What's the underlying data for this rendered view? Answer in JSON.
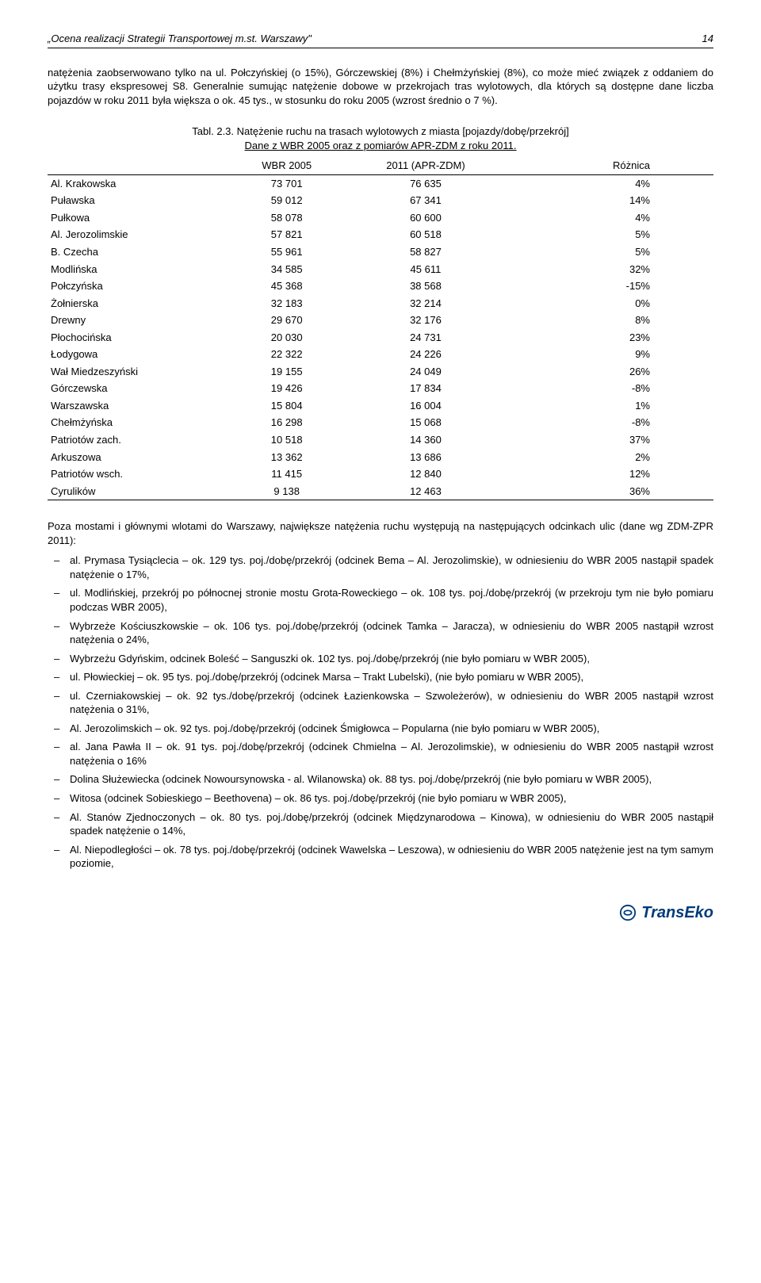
{
  "header": {
    "title": "„Ocena realizacji Strategii Transportowej m.st. Warszawy\"",
    "page_number": "14"
  },
  "intro_paragraph": "natężenia zaobserwowano tylko na ul. Połczyńskiej (o 15%), Górczewskiej (8%) i Chełmżyńskiej (8%), co może mieć związek z oddaniem do użytku trasy ekspresowej S8. Generalnie sumując natężenie dobowe w przekrojach tras wylotowych, dla których są dostępne dane liczba pojazdów w roku 2011 była większa o ok. 45 tys., w stosunku do roku 2005 (wzrost średnio o 7 %).",
  "table_caption": {
    "line1": "Tabl. 2.3. Natężenie ruchu na trasach wylotowych z miasta [pojazdy/dobę/przekrój]",
    "line2": "Dane z WBR 2005 oraz z pomiarów APR-ZDM z roku 2011."
  },
  "table": {
    "columns": [
      "",
      "WBR 2005",
      "2011 (APR-ZDM)",
      "Różnica"
    ],
    "rows": [
      [
        "Al. Krakowska",
        "73 701",
        "76 635",
        "4%"
      ],
      [
        "Puławska",
        "59 012",
        "67 341",
        "14%"
      ],
      [
        "Pułkowa",
        "58 078",
        "60 600",
        "4%"
      ],
      [
        "Al. Jerozolimskie",
        "57 821",
        "60 518",
        "5%"
      ],
      [
        "B. Czecha",
        "55 961",
        "58 827",
        "5%"
      ],
      [
        "Modlińska",
        "34 585",
        "45 611",
        "32%"
      ],
      [
        "Połczyńska",
        "45 368",
        "38 568",
        "-15%"
      ],
      [
        "Żołnierska",
        "32 183",
        "32 214",
        "0%"
      ],
      [
        "Drewny",
        "29 670",
        "32 176",
        "8%"
      ],
      [
        "Płochocińska",
        "20 030",
        "24 731",
        "23%"
      ],
      [
        "Łodygowa",
        "22 322",
        "24 226",
        "9%"
      ],
      [
        "Wał Miedzeszyński",
        "19 155",
        "24 049",
        "26%"
      ],
      [
        "Górczewska",
        "19 426",
        "17 834",
        "-8%"
      ],
      [
        "Warszawska",
        "15 804",
        "16 004",
        "1%"
      ],
      [
        "Chełmżyńska",
        "16 298",
        "15 068",
        "-8%"
      ],
      [
        "Patriotów zach.",
        "10 518",
        "14 360",
        "37%"
      ],
      [
        "Arkuszowa",
        "13 362",
        "13 686",
        "2%"
      ],
      [
        "Patriotów wsch.",
        "11 415",
        "12 840",
        "12%"
      ],
      [
        "Cyrulików",
        "9 138",
        "12 463",
        "36%"
      ]
    ]
  },
  "mid_paragraph": "Poza mostami i głównymi wlotami do Warszawy, największe natężenia ruchu występują na następujących odcinkach ulic (dane wg ZDM-ZPR 2011):",
  "bullets": [
    "al. Prymasa Tysiąclecia – ok. 129 tys. poj./dobę/przekrój (odcinek Bema – Al. Jerozolimskie), w odniesieniu do WBR 2005 nastąpił spadek natężenie o 17%,",
    "ul. Modlińskiej, przekrój po północnej stronie mostu Grota-Roweckiego – ok. 108 tys. poj./dobę/przekrój (w przekroju tym nie było pomiaru podczas WBR 2005),",
    "Wybrzeże Kościuszkowskie – ok. 106 tys. poj./dobę/przekrój (odcinek Tamka – Jaracza), w odniesieniu do WBR 2005 nastąpił wzrost natężenia o 24%,",
    "Wybrzeżu Gdyńskim, odcinek Boleść – Sanguszki ok. 102 tys. poj./dobę/przekrój (nie było pomiaru w WBR 2005),",
    "ul. Płowieckiej – ok. 95 tys. poj./dobę/przekrój (odcinek Marsa – Trakt Lubelski), (nie było pomiaru w WBR 2005),",
    "ul. Czerniakowskiej – ok. 92 tys./dobę/przekrój (odcinek Łazienkowska – Szwoleżerów), w odniesieniu do WBR 2005 nastąpił wzrost natężenia o 31%,",
    "Al. Jerozolimskich – ok. 92 tys. poj./dobę/przekrój (odcinek Śmigłowca – Popularna (nie było pomiaru w WBR 2005),",
    "al. Jana Pawła II – ok. 91 tys. poj./dobę/przekrój (odcinek Chmielna – Al. Jerozolimskie), w odniesieniu do WBR 2005 nastąpił wzrost natężenia o 16%",
    "Dolina Służewiecka (odcinek Nowoursynowska - al. Wilanowska) ok. 88 tys. poj./dobę/przekrój (nie było pomiaru w WBR 2005),",
    "Witosa (odcinek Sobieskiego – Beethovena) – ok. 86 tys. poj./dobę/przekrój (nie było pomiaru w WBR 2005),",
    "Al. Stanów Zjednoczonych – ok. 80 tys. poj./dobę/przekrój (odcinek Międzynarodowa – Kinowa), w odniesieniu do WBR 2005 nastąpił spadek natężenie o 14%,",
    "Al. Niepodległości – ok. 78 tys. poj./dobę/przekrój (odcinek Wawelska – Leszowa), w odniesieniu do WBR 2005 natężenie jest na tym samym poziomie,"
  ],
  "footer": {
    "logo_text": "TransEko"
  }
}
